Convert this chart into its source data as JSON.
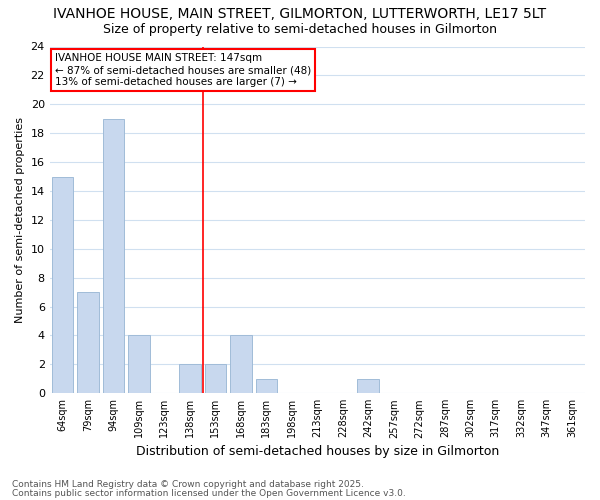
{
  "title1": "IVANHOE HOUSE, MAIN STREET, GILMORTON, LUTTERWORTH, LE17 5LT",
  "title2": "Size of property relative to semi-detached houses in Gilmorton",
  "xlabel": "Distribution of semi-detached houses by size in Gilmorton",
  "ylabel": "Number of semi-detached properties",
  "categories": [
    "64sqm",
    "79sqm",
    "94sqm",
    "109sqm",
    "123sqm",
    "138sqm",
    "153sqm",
    "168sqm",
    "183sqm",
    "198sqm",
    "213sqm",
    "228sqm",
    "242sqm",
    "257sqm",
    "272sqm",
    "287sqm",
    "302sqm",
    "317sqm",
    "332sqm",
    "347sqm",
    "361sqm"
  ],
  "values": [
    15,
    7,
    19,
    4,
    0,
    2,
    2,
    4,
    1,
    0,
    0,
    0,
    1,
    0,
    0,
    0,
    0,
    0,
    0,
    0,
    0
  ],
  "bar_color": "#c8d8ee",
  "bar_edge_color": "#a0bcd8",
  "red_line_index": 6,
  "annotation_title": "IVANHOE HOUSE MAIN STREET: 147sqm",
  "annotation_line1": "← 87% of semi-detached houses are smaller (48)",
  "annotation_line2": "13% of semi-detached houses are larger (7) →",
  "footer1": "Contains HM Land Registry data © Crown copyright and database right 2025.",
  "footer2": "Contains public sector information licensed under the Open Government Licence v3.0.",
  "ylim": [
    0,
    24
  ],
  "yticks": [
    0,
    2,
    4,
    6,
    8,
    10,
    12,
    14,
    16,
    18,
    20,
    22,
    24
  ],
  "bg_color": "#ffffff",
  "plot_bg_color": "#ffffff",
  "grid_color": "#d0e0f0",
  "title1_fontsize": 10,
  "title2_fontsize": 9,
  "ann_fontsize": 7.5,
  "footer_fontsize": 6.5
}
